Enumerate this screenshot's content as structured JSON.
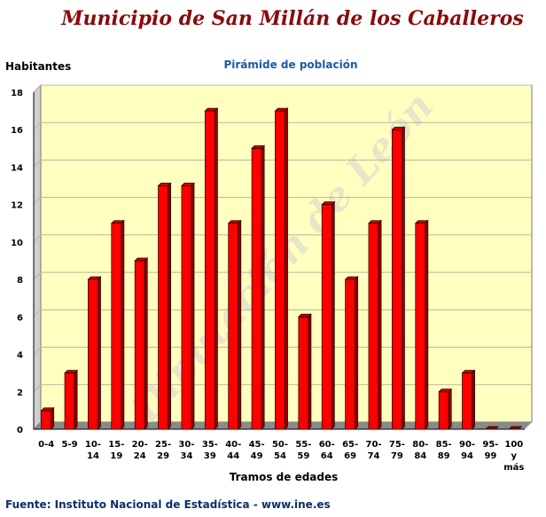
{
  "header": {
    "title": "Municipio de San Millán de los Caballeros",
    "source": "Fuente: Instituto Nacional de Estadística - www.ine.es",
    "watermark": "Diputación de León"
  },
  "chart_data": {
    "type": "bar",
    "title": "Pirámide de población",
    "xlabel": "Tramos de edades",
    "ylabel": "Habitantes",
    "ylim": [
      0,
      18
    ],
    "yticks": [
      0,
      2,
      4,
      6,
      8,
      10,
      12,
      14,
      16,
      18
    ],
    "grid": true,
    "categories": [
      [
        "0-4"
      ],
      [
        "5-9"
      ],
      [
        "10-",
        "14"
      ],
      [
        "15-",
        "19"
      ],
      [
        "20-",
        "24"
      ],
      [
        "25-",
        "29"
      ],
      [
        "30-",
        "34"
      ],
      [
        "35-",
        "39"
      ],
      [
        "40-",
        "44"
      ],
      [
        "45-",
        "49"
      ],
      [
        "50-",
        "54"
      ],
      [
        "55-",
        "59"
      ],
      [
        "60-",
        "64"
      ],
      [
        "65-",
        "69"
      ],
      [
        "70-",
        "74"
      ],
      [
        "75-",
        "79"
      ],
      [
        "80-",
        "84"
      ],
      [
        "85-",
        "89"
      ],
      [
        "90-",
        "94"
      ],
      [
        "95-",
        "99"
      ],
      [
        "100",
        "y",
        "más"
      ]
    ],
    "values": [
      1,
      3,
      8,
      11,
      9,
      13,
      13,
      17,
      11,
      15,
      17,
      6,
      12,
      8,
      11,
      16,
      11,
      2,
      3,
      0,
      0
    ],
    "colors": {
      "bar": "#ff0000",
      "bar_side": "#8b0000",
      "bar_top": "#c80000",
      "plot_bg": "#ffffc0",
      "wall": "#cfcfcf",
      "floor": "#8a8a8a",
      "grid": "#b8b8a0"
    }
  }
}
